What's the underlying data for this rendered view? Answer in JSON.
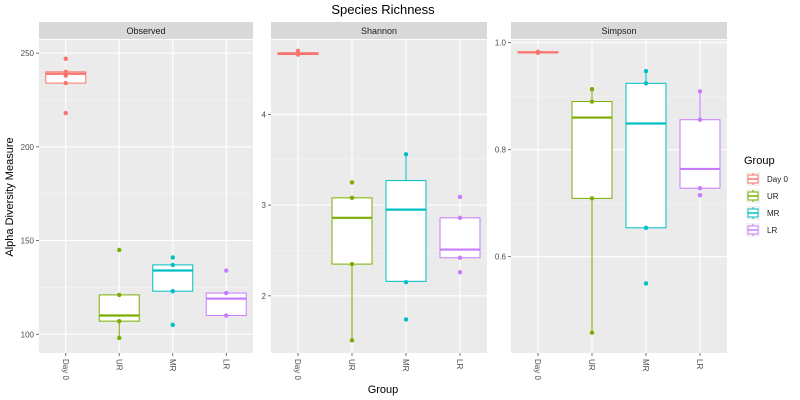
{
  "chart_data": {
    "type": "box",
    "title": "Species Richness",
    "xlabel": "Group",
    "ylabel": "Alpha Diversity Measure",
    "categories": [
      "Day 0",
      "UR",
      "MR",
      "LR"
    ],
    "colors": {
      "Day 0": "#F8766D",
      "UR": "#7CAE00",
      "MR": "#00BFC4",
      "LR": "#C77CFF"
    },
    "legend": {
      "title": "Group",
      "position": "right",
      "items": [
        "Day 0",
        "UR",
        "MR",
        "LR"
      ]
    },
    "grid": true,
    "panels": [
      {
        "name": "Observed",
        "ylim": [
          90,
          257
        ],
        "yticks": [
          100,
          150,
          200,
          250
        ],
        "ytick_labels": [
          "100",
          "150",
          "200",
          "250"
        ],
        "boxes": [
          {
            "group": "Day 0",
            "min": 234,
            "q1": 234,
            "median": 239,
            "q3": 240,
            "max": 240,
            "points": [
              247,
              240,
              238,
              234,
              218
            ]
          },
          {
            "group": "UR",
            "min": 98,
            "q1": 107,
            "median": 110,
            "q3": 121,
            "max": 121,
            "points": [
              145,
              121,
              107,
              98
            ]
          },
          {
            "group": "MR",
            "min": 123,
            "q1": 123,
            "median": 134,
            "q3": 137,
            "max": 137,
            "points": [
              141,
              137,
              123,
              105
            ]
          },
          {
            "group": "LR",
            "min": 110,
            "q1": 110,
            "median": 119,
            "q3": 122,
            "max": 122,
            "points": [
              134,
              122,
              110
            ]
          }
        ]
      },
      {
        "name": "Shannon",
        "ylim": [
          1.37,
          4.82
        ],
        "yticks": [
          2,
          3,
          4
        ],
        "ytick_labels": [
          "2",
          "3",
          "4"
        ],
        "boxes": [
          {
            "group": "Day 0",
            "min": 4.66,
            "q1": 4.66,
            "median": 4.67,
            "q3": 4.68,
            "max": 4.68,
            "points": [
              4.7,
              4.66
            ]
          },
          {
            "group": "UR",
            "min": 1.51,
            "q1": 2.35,
            "median": 2.86,
            "q3": 3.08,
            "max": 3.08,
            "points": [
              3.25,
              3.08,
              2.35,
              1.51
            ]
          },
          {
            "group": "MR",
            "min": 2.15,
            "q1": 2.16,
            "median": 2.95,
            "q3": 3.27,
            "max": 3.56,
            "points": [
              3.56,
              2.15,
              1.74
            ]
          },
          {
            "group": "LR",
            "min": 2.42,
            "q1": 2.42,
            "median": 2.51,
            "q3": 2.86,
            "max": 2.86,
            "points": [
              3.09,
              2.86,
              2.42,
              2.26
            ]
          }
        ]
      },
      {
        "name": "Simpson",
        "ylim": [
          0.42,
          1.005
        ],
        "yticks": [
          0.6,
          0.8,
          1.0
        ],
        "ytick_labels": [
          "0.6",
          "0.8",
          "1.0"
        ],
        "boxes": [
          {
            "group": "Day 0",
            "min": 0.981,
            "q1": 0.981,
            "median": 0.982,
            "q3": 0.983,
            "max": 0.983,
            "points": [
              0.983,
              0.981
            ]
          },
          {
            "group": "UR",
            "min": 0.458,
            "q1": 0.709,
            "median": 0.86,
            "q3": 0.89,
            "max": 0.913,
            "points": [
              0.913,
              0.89,
              0.709,
              0.458
            ]
          },
          {
            "group": "MR",
            "min": 0.654,
            "q1": 0.654,
            "median": 0.849,
            "q3": 0.924,
            "max": 0.947,
            "points": [
              0.947,
              0.924,
              0.654,
              0.55
            ]
          },
          {
            "group": "LR",
            "min": 0.728,
            "q1": 0.728,
            "median": 0.764,
            "q3": 0.856,
            "max": 0.909,
            "points": [
              0.909,
              0.856,
              0.728,
              0.715
            ]
          }
        ]
      }
    ]
  }
}
